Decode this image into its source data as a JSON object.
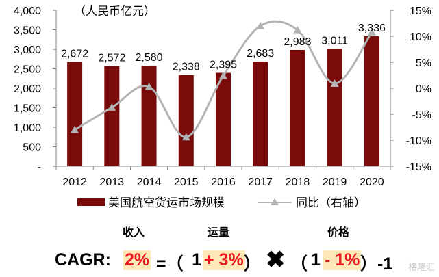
{
  "chart_data": {
    "type": "bar",
    "unit_label": "（人民币亿元）",
    "categories": [
      "2012",
      "2013",
      "2014",
      "2015",
      "2016",
      "2017",
      "2018",
      "2019",
      "2020"
    ],
    "series": [
      {
        "name": "美国航空货运市场规模",
        "kind": "bar",
        "axis": "left",
        "color": "#7b0a0a",
        "values": [
          2672,
          2572,
          2580,
          2338,
          2395,
          2683,
          2983,
          3011,
          3336
        ]
      },
      {
        "name": "同比（右轴）",
        "kind": "line",
        "axis": "right",
        "color": "#b3b3b3",
        "values": [
          -8.0,
          -3.7,
          0.3,
          -9.4,
          2.4,
          12.0,
          11.2,
          0.9,
          10.8
        ]
      }
    ],
    "data_labels": [
      "2,672",
      "2,572",
      "2,580",
      "2,338",
      "2,395",
      "2,683",
      "2,983",
      "3,011",
      "3,336"
    ],
    "y_left": {
      "ticks": [
        "-",
        "500",
        "1,000",
        "1,500",
        "2,000",
        "2,500",
        "3,000",
        "3,500",
        "4,000"
      ],
      "range": [
        0,
        4000
      ]
    },
    "y_right": {
      "ticks": [
        "-15%",
        "-10%",
        "-5%",
        "0%",
        "5%",
        "10%",
        "15%"
      ],
      "range": [
        -15,
        15
      ]
    },
    "grid": false,
    "legend_position": "bottom"
  },
  "formula": {
    "label_revenue": "收入",
    "label_volume": "运量",
    "label_price": "价格",
    "cagr_label": "CAGR:",
    "cagr_value": "2%",
    "equals_open": "=（",
    "one_a": "1",
    "volume_value": "+ 3%",
    "close_a": "）",
    "times": "✖",
    "open_b": "（",
    "one_b": "1",
    "price_value": "- 1%",
    "close_b": "）-1"
  },
  "watermark": "格隆汇"
}
